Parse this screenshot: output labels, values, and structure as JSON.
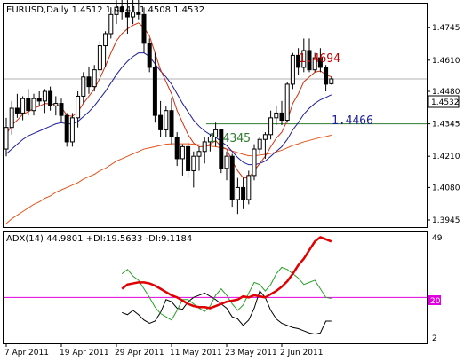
{
  "main": {
    "header": "EURUSD,Daily  1.4512 1.4541 1.4508 1.4532",
    "current_price": "1.4532",
    "annotations": {
      "high": "1.4694",
      "ma": "1.4466",
      "support": "1.4345"
    },
    "price_ticks": [
      "1.4875",
      "1.4745",
      "1.4610",
      "1.4480",
      "1.4345",
      "1.4210",
      "1.4080",
      "1.3945"
    ],
    "colors": {
      "bull": "#ffffff",
      "bear": "#000000",
      "candle_edge": "#000000",
      "ma_fast": "#d03010",
      "ma_mid": "#1c1c9c",
      "ma_slow": "#e4541c",
      "support_line": "#2e7d2e",
      "high_label": "#c00000",
      "ma_label": "#1c1c9c",
      "support_label": "#2e7d2e",
      "price_line": "#b0b0b0"
    }
  },
  "adx": {
    "header": "ADX(14) 44.9801 +DI:19.5633 -DI:9.1184",
    "ticks": [
      "49",
      "2"
    ],
    "level": "20",
    "colors": {
      "adx": "#e00000",
      "plus_di": "#28a028",
      "minus_di": "#000000",
      "level": "#e000e0"
    }
  },
  "x_ticks": [
    "7 Apr 2011",
    "19 Apr 2011",
    "29 Apr 2011",
    "11 May 2011",
    "23 May 2011",
    "2 Jun 2011"
  ],
  "chart_data": [
    {
      "type": "candlestick",
      "title": "EURUSD,Daily",
      "ylim": [
        1.3945,
        1.4875
      ],
      "note": "approximate daily OHLC read from the candles",
      "candles": [
        [
          1.424,
          1.437,
          1.421,
          1.433
        ],
        [
          1.433,
          1.444,
          1.43,
          1.441
        ],
        [
          1.441,
          1.447,
          1.437,
          1.439
        ],
        [
          1.439,
          1.446,
          1.436,
          1.445
        ],
        [
          1.445,
          1.449,
          1.438,
          1.44
        ],
        [
          1.44,
          1.447,
          1.438,
          1.445
        ],
        [
          1.445,
          1.448,
          1.442,
          1.444
        ],
        [
          1.444,
          1.449,
          1.439,
          1.448
        ],
        [
          1.448,
          1.45,
          1.44,
          1.442
        ],
        [
          1.442,
          1.446,
          1.438,
          1.443
        ],
        [
          1.443,
          1.445,
          1.435,
          1.438
        ],
        [
          1.438,
          1.439,
          1.425,
          1.427
        ],
        [
          1.427,
          1.439,
          1.425,
          1.437
        ],
        [
          1.437,
          1.448,
          1.433,
          1.446
        ],
        [
          1.446,
          1.456,
          1.443,
          1.454
        ],
        [
          1.454,
          1.458,
          1.447,
          1.45
        ],
        [
          1.45,
          1.459,
          1.448,
          1.457
        ],
        [
          1.457,
          1.469,
          1.455,
          1.467
        ],
        [
          1.467,
          1.473,
          1.458,
          1.472
        ],
        [
          1.472,
          1.483,
          1.47,
          1.48
        ],
        [
          1.48,
          1.486,
          1.476,
          1.483
        ],
        [
          1.483,
          1.488,
          1.478,
          1.481
        ],
        [
          1.481,
          1.486,
          1.472,
          1.479
        ],
        [
          1.479,
          1.486,
          1.476,
          1.481
        ],
        [
          1.481,
          1.493,
          1.478,
          1.48
        ],
        [
          1.48,
          1.483,
          1.464,
          1.468
        ],
        [
          1.468,
          1.47,
          1.456,
          1.458
        ],
        [
          1.458,
          1.464,
          1.435,
          1.438
        ],
        [
          1.438,
          1.444,
          1.429,
          1.432
        ],
        [
          1.432,
          1.442,
          1.429,
          1.44
        ],
        [
          1.44,
          1.445,
          1.426,
          1.429
        ],
        [
          1.429,
          1.431,
          1.417,
          1.42
        ],
        [
          1.42,
          1.426,
          1.413,
          1.425
        ],
        [
          1.425,
          1.427,
          1.412,
          1.415
        ],
        [
          1.415,
          1.423,
          1.408,
          1.421
        ],
        [
          1.421,
          1.425,
          1.415,
          1.423
        ],
        [
          1.423,
          1.429,
          1.418,
          1.427
        ],
        [
          1.427,
          1.43,
          1.423,
          1.429
        ],
        [
          1.429,
          1.435,
          1.425,
          1.432
        ],
        [
          1.432,
          1.432,
          1.414,
          1.416
        ],
        [
          1.416,
          1.423,
          1.411,
          1.421
        ],
        [
          1.421,
          1.422,
          1.4,
          1.403
        ],
        [
          1.403,
          1.412,
          1.397,
          1.408
        ],
        [
          1.408,
          1.412,
          1.399,
          1.403
        ],
        [
          1.403,
          1.415,
          1.401,
          1.413
        ],
        [
          1.413,
          1.426,
          1.411,
          1.424
        ],
        [
          1.424,
          1.429,
          1.422,
          1.428
        ],
        [
          1.428,
          1.431,
          1.42,
          1.43
        ],
        [
          1.43,
          1.44,
          1.428,
          1.437
        ],
        [
          1.437,
          1.442,
          1.434,
          1.439
        ],
        [
          1.439,
          1.444,
          1.434,
          1.436
        ],
        [
          1.436,
          1.452,
          1.435,
          1.451
        ],
        [
          1.451,
          1.464,
          1.449,
          1.463
        ],
        [
          1.463,
          1.466,
          1.455,
          1.458
        ],
        [
          1.458,
          1.47,
          1.456,
          1.465
        ],
        [
          1.465,
          1.47,
          1.456,
          1.457
        ],
        [
          1.457,
          1.464,
          1.456,
          1.462
        ],
        [
          1.462,
          1.466,
          1.456,
          1.458
        ],
        [
          1.458,
          1.459,
          1.448,
          1.451
        ],
        [
          1.4512,
          1.4541,
          1.4508,
          1.4532
        ]
      ],
      "moving_averages": [
        {
          "name": "fast",
          "values": [
            1.43,
            1.434,
            1.436,
            1.4385,
            1.4395,
            1.441,
            1.4418,
            1.443,
            1.4428,
            1.4426,
            1.4415,
            1.438,
            1.4376,
            1.4395,
            1.443,
            1.446,
            1.449,
            1.4535,
            1.4585,
            1.464,
            1.469,
            1.472,
            1.474,
            1.4755,
            1.4765,
            1.4745,
            1.471,
            1.464,
            1.457,
            1.452,
            1.447,
            1.44,
            1.435,
            1.43,
            1.4265,
            1.425,
            1.425,
            1.426,
            1.4275,
            1.425,
            1.424,
            1.419,
            1.415,
            1.412,
            1.412,
            1.415,
            1.418,
            1.421,
            1.425,
            1.4285,
            1.431,
            1.436,
            1.443,
            1.447,
            1.452,
            1.454,
            1.456,
            1.4565,
            1.455,
            1.454
          ]
        },
        {
          "name": "mid",
          "values": [
            1.422,
            1.424,
            1.426,
            1.428,
            1.4295,
            1.4305,
            1.4315,
            1.4325,
            1.4335,
            1.4345,
            1.435,
            1.4345,
            1.4345,
            1.4355,
            1.4375,
            1.4395,
            1.442,
            1.445,
            1.448,
            1.4515,
            1.455,
            1.458,
            1.4605,
            1.4625,
            1.464,
            1.464,
            1.4625,
            1.4595,
            1.4565,
            1.454,
            1.451,
            1.447,
            1.443,
            1.4395,
            1.436,
            1.4335,
            1.4315,
            1.43,
            1.429,
            1.427,
            1.4255,
            1.423,
            1.4205,
            1.4185,
            1.4175,
            1.4175,
            1.418,
            1.419,
            1.421,
            1.423,
            1.425,
            1.428,
            1.432,
            1.435,
            1.4385,
            1.441,
            1.443,
            1.4445,
            1.4455,
            1.4466
          ]
        },
        {
          "name": "slow",
          "values": [
            1.393,
            1.395,
            1.3965,
            1.398,
            1.3995,
            1.401,
            1.402,
            1.4035,
            1.4045,
            1.406,
            1.407,
            1.408,
            1.409,
            1.41,
            1.4115,
            1.4125,
            1.4135,
            1.415,
            1.416,
            1.4175,
            1.419,
            1.42,
            1.421,
            1.422,
            1.423,
            1.424,
            1.4245,
            1.425,
            1.4255,
            1.426,
            1.4262,
            1.4262,
            1.4262,
            1.4262,
            1.426,
            1.4258,
            1.4255,
            1.4252,
            1.425,
            1.4245,
            1.424,
            1.4232,
            1.4225,
            1.4218,
            1.4212,
            1.4212,
            1.4215,
            1.4218,
            1.4222,
            1.4228,
            1.4235,
            1.4245,
            1.4255,
            1.4262,
            1.427,
            1.4276,
            1.4282,
            1.4288,
            1.4292,
            1.4298
          ]
        }
      ],
      "horizontal_lines": [
        {
          "label": "1.4345",
          "value": 1.4345
        },
        {
          "label": "1.4532",
          "value": 1.4532
        }
      ]
    },
    {
      "type": "line",
      "title": "ADX(14)",
      "ylim": [
        2,
        49
      ],
      "series": [
        {
          "name": "ADX",
          "values": [
            null,
            null,
            null,
            null,
            null,
            null,
            null,
            null,
            null,
            null,
            null,
            null,
            null,
            null,
            null,
            null,
            null,
            null,
            null,
            null,
            null,
            24.0,
            26.0,
            26.5,
            27.0,
            27.0,
            26.5,
            25.5,
            24.0,
            22.5,
            21.0,
            20.0,
            18.5,
            17.0,
            16.0,
            15.5,
            15.5,
            15.0,
            16.0,
            17.0,
            18.0,
            18.5,
            19.0,
            20.5,
            20.0,
            21.0,
            20.5,
            20.0,
            21.5,
            23.0,
            25.0,
            27.5,
            31.0,
            35.0,
            38.0,
            42.0,
            46.0,
            48.0,
            47.0,
            46.0
          ]
        },
        {
          "name": "+DI",
          "values": [
            null,
            null,
            null,
            null,
            null,
            null,
            null,
            null,
            null,
            null,
            null,
            null,
            null,
            null,
            null,
            null,
            null,
            null,
            null,
            null,
            null,
            31.0,
            33.0,
            30.0,
            28.0,
            24.0,
            20.0,
            15.5,
            12.5,
            11.0,
            9.5,
            14.0,
            19.0,
            19.0,
            17.0,
            15.0,
            13.5,
            16.0,
            21.0,
            24.0,
            21.0,
            17.0,
            14.0,
            16.5,
            22.0,
            27.0,
            26.0,
            23.0,
            26.0,
            31.0,
            34.0,
            33.0,
            31.0,
            29.0,
            26.0,
            27.0,
            28.0,
            24.0,
            20.0,
            19.5
          ]
        },
        {
          "name": "-DI",
          "values": [
            null,
            null,
            null,
            null,
            null,
            null,
            null,
            null,
            null,
            null,
            null,
            null,
            null,
            null,
            null,
            null,
            null,
            null,
            null,
            null,
            null,
            13.0,
            12.0,
            14.0,
            12.0,
            9.5,
            8.0,
            9.0,
            13.0,
            19.0,
            18.0,
            15.0,
            14.5,
            18.0,
            20.0,
            21.0,
            22.0,
            20.5,
            19.0,
            17.0,
            15.0,
            11.0,
            10.0,
            7.0,
            9.5,
            15.0,
            23.0,
            20.0,
            14.0,
            10.0,
            8.0,
            7.0,
            6.0,
            5.5,
            4.5,
            3.5,
            3.0,
            3.5,
            9.0,
            9.0
          ]
        }
      ],
      "horizontal_lines": [
        {
          "label": "20",
          "value": 20
        }
      ]
    }
  ]
}
